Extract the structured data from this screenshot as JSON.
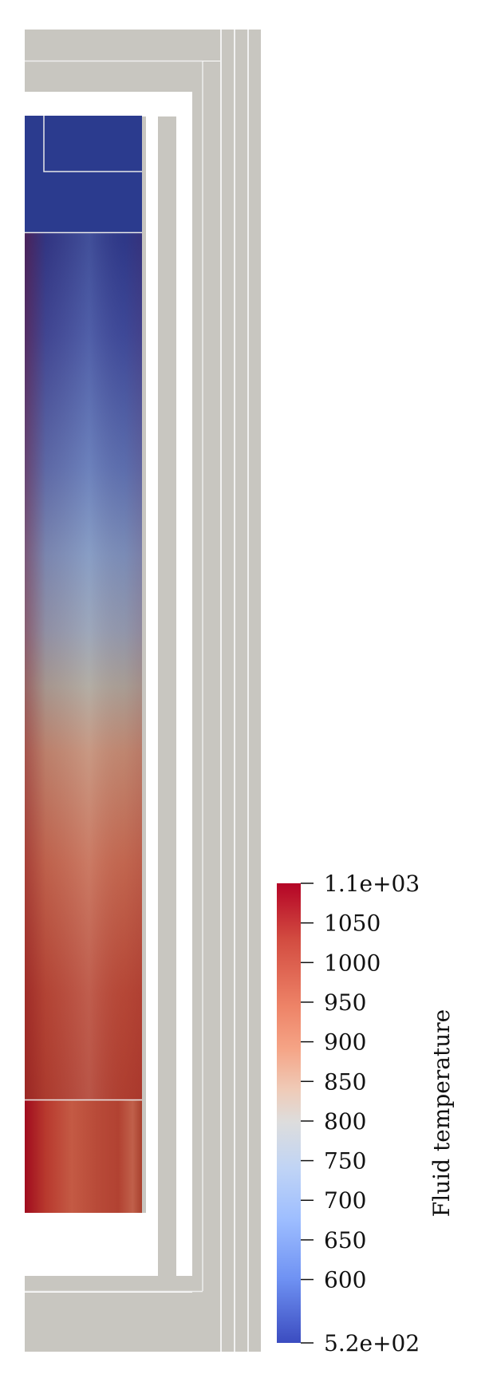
{
  "colorbar": {
    "title": "Fluid temperature",
    "ticks": [
      {
        "value": 1100,
        "label": "1.1e+03"
      },
      {
        "value": 1050,
        "label": "1050"
      },
      {
        "value": 1000,
        "label": "1000"
      },
      {
        "value": 950,
        "label": "950"
      },
      {
        "value": 900,
        "label": "900"
      },
      {
        "value": 850,
        "label": "850"
      },
      {
        "value": 800,
        "label": "800"
      },
      {
        "value": 750,
        "label": "750"
      },
      {
        "value": 700,
        "label": "700"
      },
      {
        "value": 650,
        "label": "650"
      },
      {
        "value": 600,
        "label": "600"
      },
      {
        "value": 520,
        "label": "5.2e+02"
      }
    ],
    "range": [
      520,
      1100
    ],
    "colormap": "cool-to-warm",
    "colors": {
      "low": "#3b4cc0",
      "mid": "#dddddd",
      "high": "#b40426"
    }
  },
  "colors": {
    "solid_structure": "#c8c6c0",
    "boundary_line": "#e8e8e8"
  }
}
